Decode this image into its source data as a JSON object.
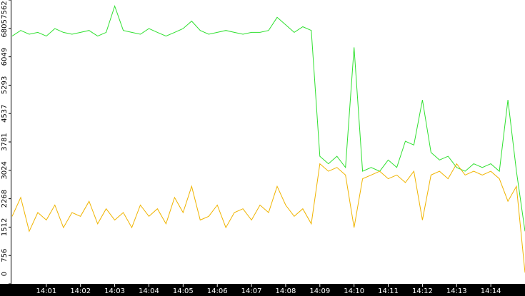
{
  "chart_data": {
    "type": "line",
    "categories": [
      null,
      null,
      null,
      null,
      "14:01",
      null,
      null,
      null,
      "14:02",
      null,
      null,
      null,
      "14:03",
      null,
      null,
      null,
      "14:04",
      null,
      null,
      null,
      "14:05",
      null,
      null,
      null,
      "14:06",
      null,
      null,
      null,
      "14:07",
      null,
      null,
      null,
      "14:08",
      null,
      null,
      null,
      "14:09",
      null,
      null,
      null,
      "14:10",
      null,
      null,
      null,
      "14:11",
      null,
      null,
      null,
      "14:12",
      null,
      null,
      null,
      "14:13",
      null,
      null,
      null,
      "14:14",
      null,
      null,
      null,
      null
    ],
    "series": [
      {
        "color": "#2fe02f",
        "values": [
          6600,
          6750,
          6650,
          6700,
          6600,
          6800,
          6700,
          6650,
          6700,
          6750,
          6600,
          6700,
          7400,
          6750,
          6700,
          6650,
          6800,
          6700,
          6600,
          6700,
          6800,
          7000,
          6750,
          6650,
          6700,
          6750,
          6700,
          6650,
          6700,
          6700,
          6750,
          7100,
          6900,
          6700,
          6850,
          6750,
          3400,
          3200,
          3400,
          3100,
          6300,
          3000,
          3100,
          3000,
          3300,
          3100,
          3800,
          3700,
          4900,
          3500,
          3300,
          3400,
          3100,
          3000,
          3200,
          3100,
          3200,
          3000,
          4900,
          3000,
          1400
        ]
      },
      {
        "color": "#f0b400",
        "values": [
          1800,
          2300,
          1400,
          1900,
          1700,
          2100,
          1500,
          1900,
          1800,
          2200,
          1600,
          2000,
          1700,
          1900,
          1500,
          2100,
          1800,
          2000,
          1600,
          2300,
          1900,
          2600,
          1700,
          1800,
          2100,
          1500,
          1900,
          2000,
          1700,
          2100,
          1900,
          2600,
          2100,
          1800,
          2000,
          1600,
          3200,
          3000,
          3100,
          2900,
          1500,
          2800,
          2900,
          3000,
          2800,
          2900,
          2700,
          3000,
          1700,
          2900,
          3000,
          2800,
          3200,
          2900,
          3000,
          2900,
          3000,
          2800,
          2200,
          2600,
          300
        ]
      }
    ],
    "ylim": [
      0,
      7562
    ],
    "yticks": [
      0,
      756,
      1512,
      2268,
      3024,
      3781,
      4537,
      5293,
      6049,
      6805,
      7562
    ]
  }
}
